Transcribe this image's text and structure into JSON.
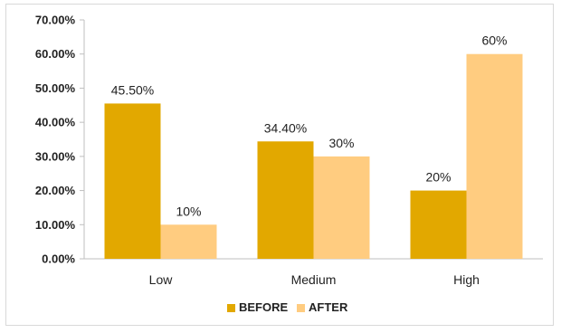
{
  "chart_data": {
    "type": "bar",
    "categories": [
      "Low",
      "Medium",
      "High"
    ],
    "series": [
      {
        "name": "BEFORE",
        "values": [
          45.5,
          34.4,
          20
        ],
        "labels": [
          "45.50%",
          "34.40%",
          "20%"
        ],
        "color": "#e2a800"
      },
      {
        "name": "AFTER",
        "values": [
          10,
          30,
          60
        ],
        "labels": [
          "10%",
          "30%",
          "60%"
        ],
        "color": "#ffcc80"
      }
    ],
    "y_ticks": [
      "0.00%",
      "10.00%",
      "20.00%",
      "30.00%",
      "40.00%",
      "50.00%",
      "60.00%",
      "70.00%"
    ],
    "ylim": [
      0,
      70
    ],
    "grid": false,
    "legend_position": "bottom",
    "title": "",
    "xlabel": "",
    "ylabel": ""
  }
}
